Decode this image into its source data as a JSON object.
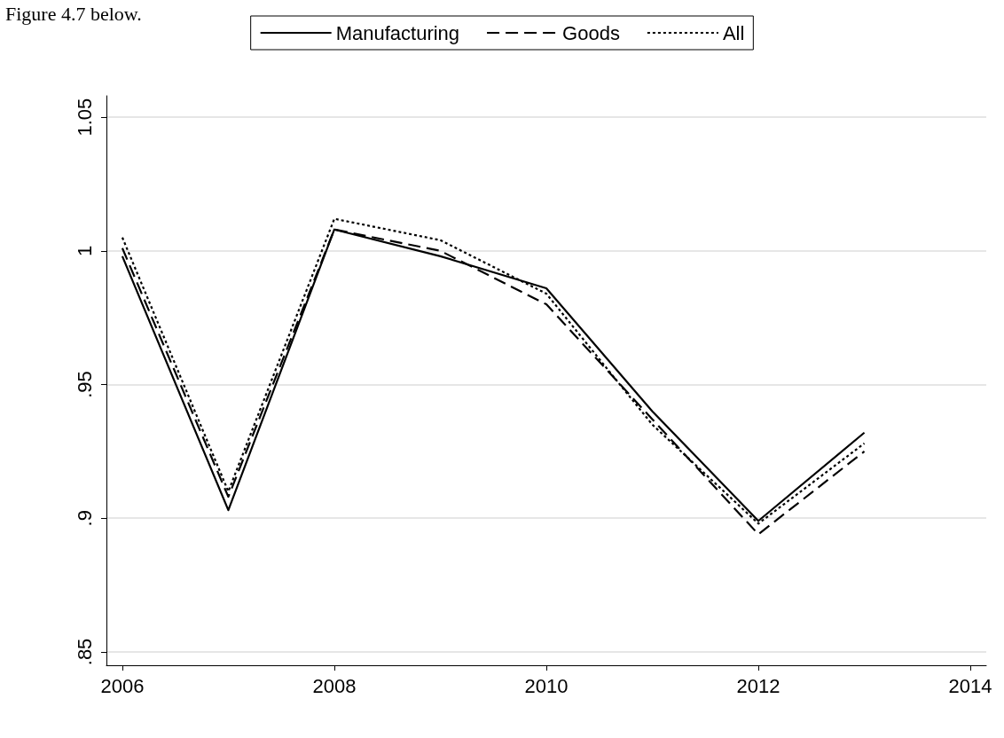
{
  "chart_data": {
    "type": "line",
    "x": [
      2006,
      2007,
      2008,
      2009,
      2010,
      2011,
      2012,
      2013
    ],
    "series": [
      {
        "name": "Manufacturing",
        "color": "#000000",
        "line_style": "solid",
        "values": [
          0.998,
          0.903,
          1.008,
          0.998,
          0.986,
          0.94,
          0.899,
          0.932
        ]
      },
      {
        "name": "Goods",
        "color": "#000000",
        "line_style": "dashed",
        "values": [
          1.001,
          0.908,
          1.008,
          1.0,
          0.98,
          0.937,
          0.894,
          0.925
        ]
      },
      {
        "name": "All",
        "color": "#000000",
        "line_style": "dotted",
        "values": [
          1.005,
          0.91,
          1.012,
          1.004,
          0.984,
          0.935,
          0.898,
          0.928
        ]
      }
    ],
    "xlim": [
      2005.85,
      2014.15
    ],
    "xticks": [
      2006,
      2008,
      2010,
      2012,
      2014
    ],
    "ylim": [
      0.845,
      1.058
    ],
    "yticks": [
      {
        "value": 0.85,
        "label": ".85"
      },
      {
        "value": 0.9,
        "label": ".9"
      },
      {
        "value": 0.95,
        "label": ".95"
      },
      {
        "value": 1,
        "label": "1"
      },
      {
        "value": 1.05,
        "label": "1.05"
      }
    ],
    "grid": "y",
    "legend": "top",
    "marker": "none",
    "annotations": [
      "Figure 4.7 below."
    ]
  }
}
